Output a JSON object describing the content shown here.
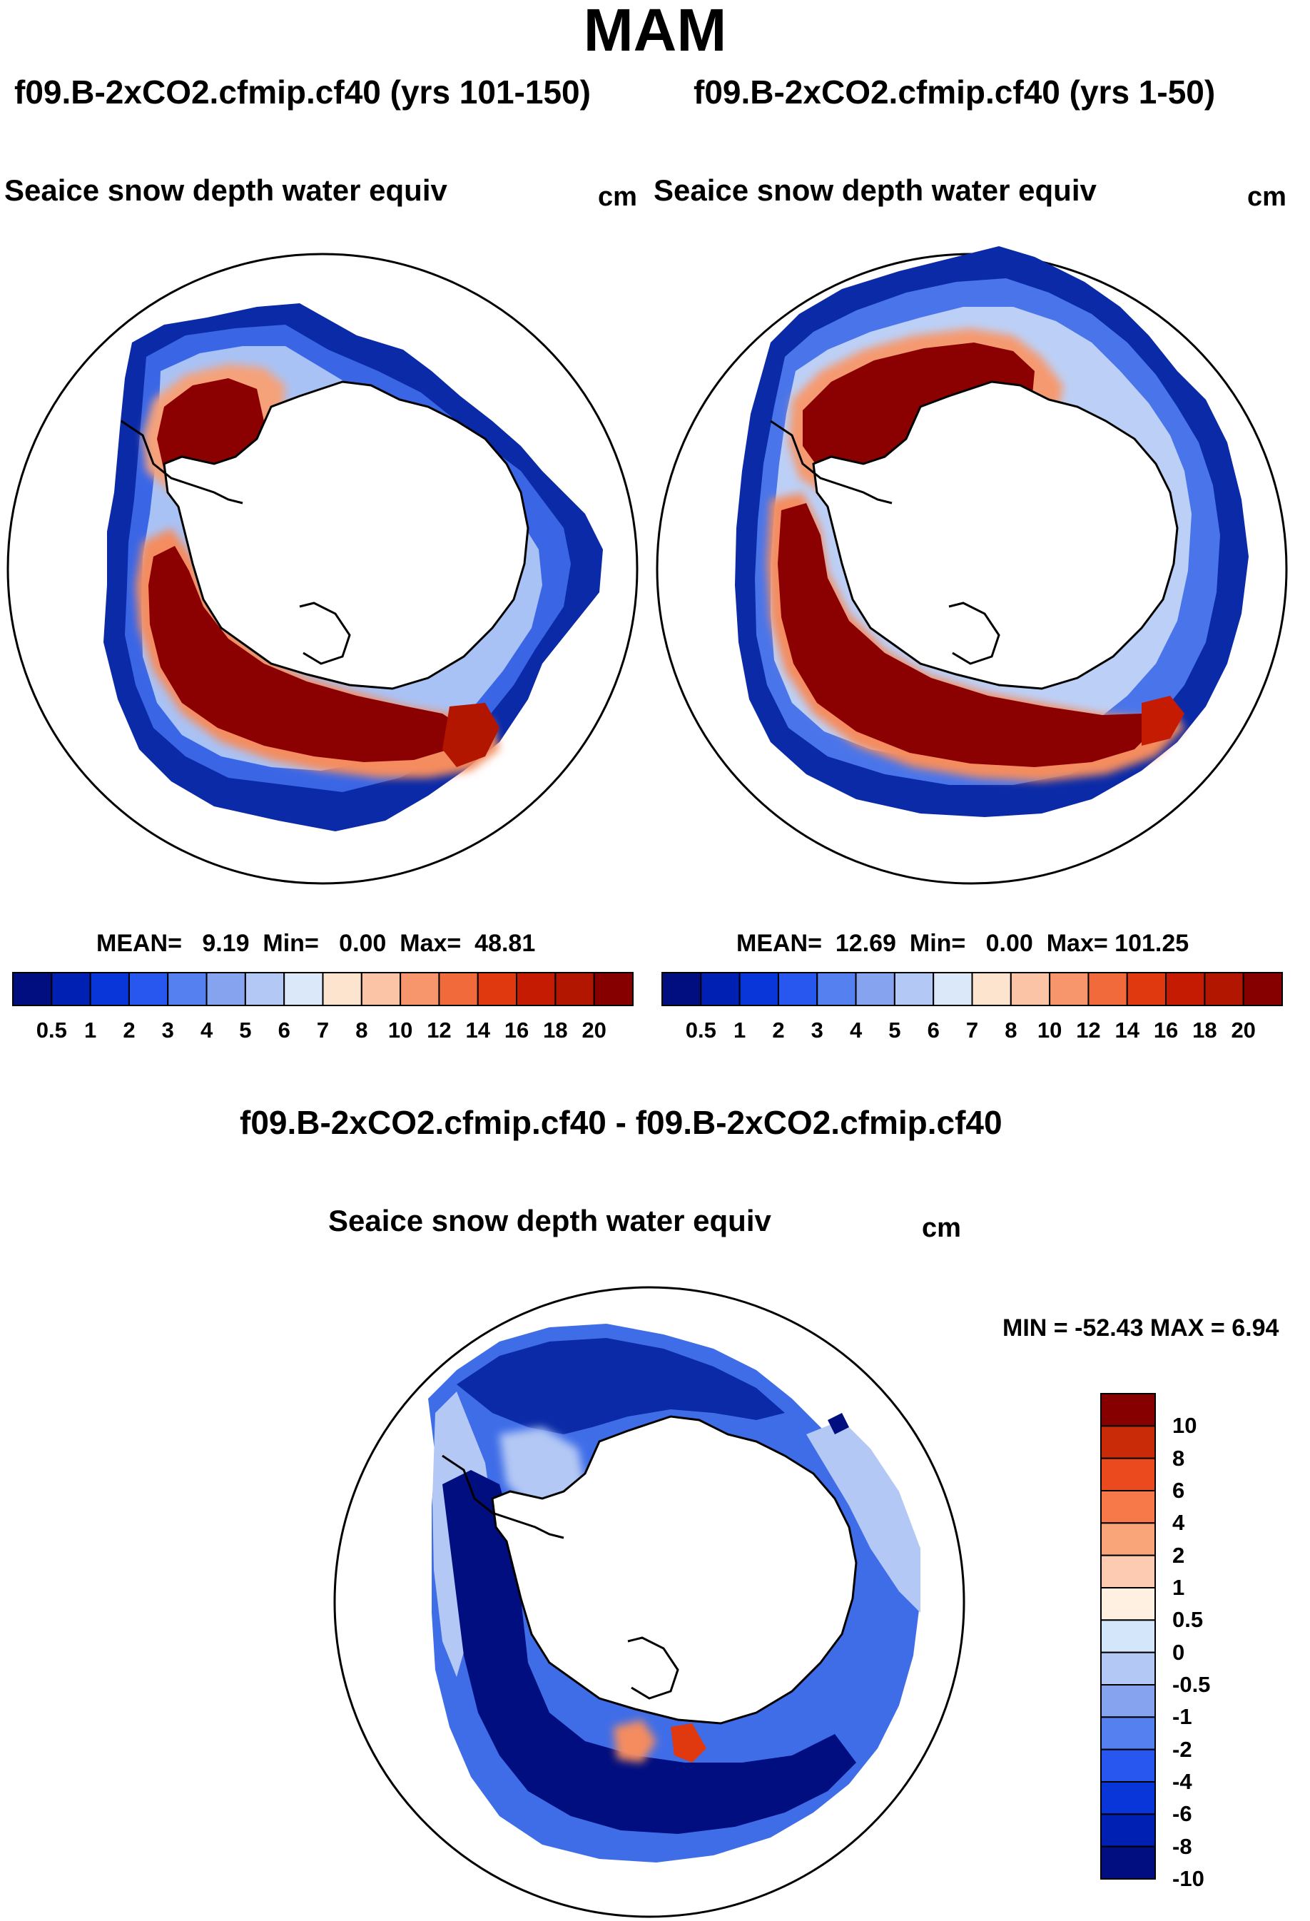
{
  "page": {
    "title": "MAM"
  },
  "panels": [
    {
      "case_title": "f09.B-2xCO2.cfmip.cf40 (yrs 101-150)",
      "variable": "Seaice snow depth water equiv",
      "units": "cm",
      "stats": {
        "mean_label": "MEAN=",
        "mean": "9.19",
        "min_label": "Min=",
        "min": "0.00",
        "max_label": "Max=",
        "max": "48.81"
      }
    },
    {
      "case_title": "f09.B-2xCO2.cfmip.cf40 (yrs 1-50)",
      "variable": "Seaice snow depth water equiv",
      "units": "cm",
      "stats": {
        "mean_label": "MEAN=",
        "mean": "12.69",
        "min_label": "Min=",
        "min": "0.00",
        "max_label": "Max=",
        "max": "101.25"
      }
    },
    {
      "case_title": "f09.B-2xCO2.cfmip.cf40 - f09.B-2xCO2.cfmip.cf40",
      "variable": "Seaice snow depth water equiv",
      "units": "cm",
      "stats_text": "MIN = -52.43 MAX =    6.94"
    }
  ],
  "colorbars": {
    "absolute": {
      "colors": [
        "#000e7f",
        "#0020b4",
        "#0836d8",
        "#2757ef",
        "#5580f0",
        "#85a3ef",
        "#b3c8f4",
        "#dbe8fa",
        "#fde4cf",
        "#fbc4a6",
        "#f7956d",
        "#f06a3b",
        "#e0380f",
        "#c51b02",
        "#b21500",
        "#870000"
      ],
      "ticks": [
        "0.5",
        "1",
        "2",
        "3",
        "4",
        "5",
        "6",
        "7",
        "8",
        "10",
        "12",
        "14",
        "16",
        "18",
        "20"
      ]
    },
    "difference": {
      "colors": [
        "#000e7f",
        "#0020b4",
        "#0836d8",
        "#2757ef",
        "#5580f0",
        "#85a3ef",
        "#b3c8f4",
        "#d4e6fa",
        "#fff0e2",
        "#fccbb1",
        "#faa479",
        "#f7794a",
        "#ea4a1e",
        "#c92a08",
        "#870000"
      ],
      "ticks": [
        "10",
        "8",
        "6",
        "4",
        "2",
        "1",
        "0.5",
        "0",
        "-0.5",
        "-1",
        "-2",
        "-4",
        "-6",
        "-8",
        "-10"
      ]
    }
  },
  "chart_data": [
    {
      "type": "heatmap",
      "projection": "south polar stereographic",
      "title": "f09.B-2xCO2.cfmip.cf40 (yrs 101-150)",
      "variable": "Seaice snow depth water equiv",
      "units": "cm",
      "mean": 9.19,
      "min": 0.0,
      "max": 48.81,
      "color_levels": [
        0.5,
        1,
        2,
        3,
        4,
        5,
        6,
        7,
        8,
        10,
        12,
        14,
        16,
        18,
        20
      ]
    },
    {
      "type": "heatmap",
      "projection": "south polar stereographic",
      "title": "f09.B-2xCO2.cfmip.cf40 (yrs 1-50)",
      "variable": "Seaice snow depth water equiv",
      "units": "cm",
      "mean": 12.69,
      "min": 0.0,
      "max": 101.25,
      "color_levels": [
        0.5,
        1,
        2,
        3,
        4,
        5,
        6,
        7,
        8,
        10,
        12,
        14,
        16,
        18,
        20
      ]
    },
    {
      "type": "heatmap",
      "projection": "south polar stereographic",
      "title": "f09.B-2xCO2.cfmip.cf40 - f09.B-2xCO2.cfmip.cf40",
      "variable": "Seaice snow depth water equiv",
      "units": "cm",
      "min": -52.43,
      "max": 6.94,
      "color_levels": [
        -10,
        -8,
        -6,
        -4,
        -2,
        -1,
        -0.5,
        0,
        0.5,
        1,
        2,
        4,
        6,
        8,
        10
      ]
    }
  ]
}
